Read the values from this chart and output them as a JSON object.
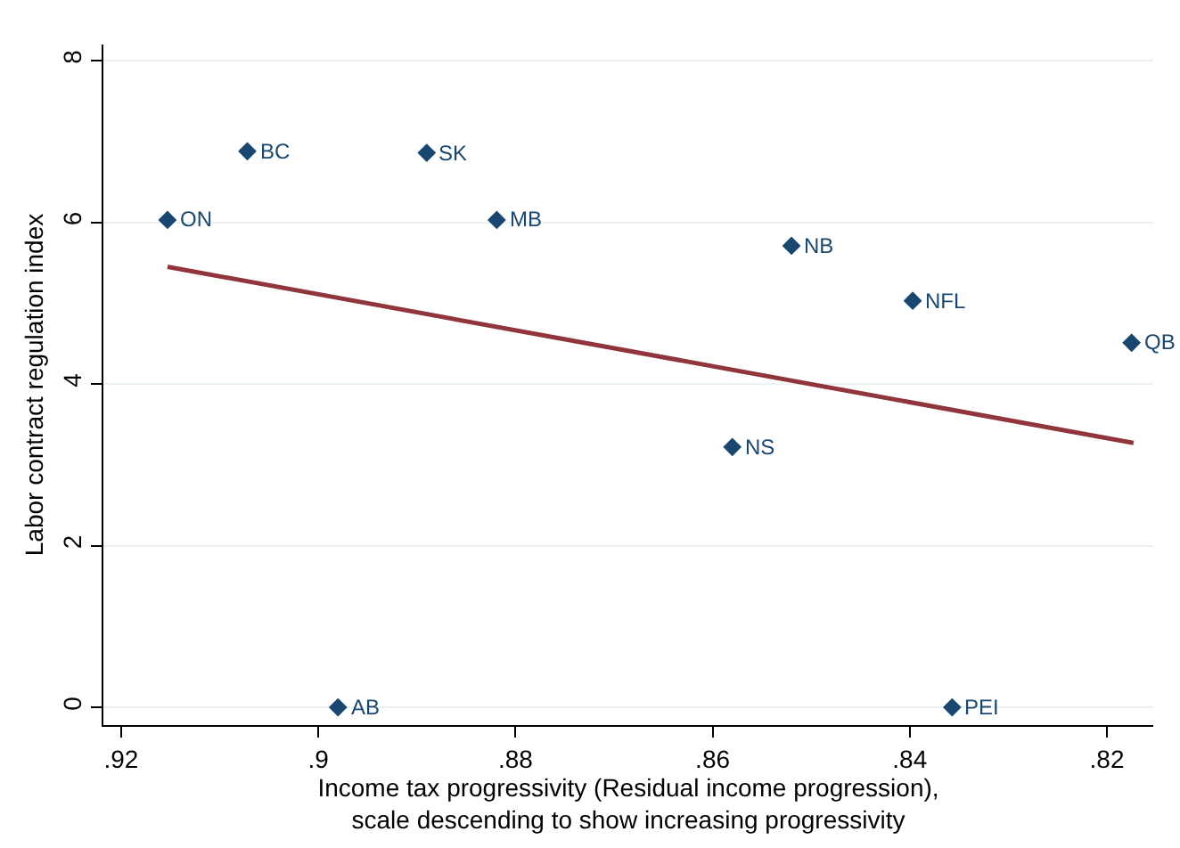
{
  "chart_data": {
    "type": "scatter",
    "xlabel": "Income tax progressivity (Residual income progression),\nscale descending to show increasing progressivity",
    "ylabel": "Labor contract regulation index",
    "xlim": [
      0.9218,
      0.8153
    ],
    "xticks": [
      {
        "value": 0.92,
        "label": ".92"
      },
      {
        "value": 0.9,
        "label": ".9"
      },
      {
        "value": 0.88,
        "label": ".88"
      },
      {
        "value": 0.86,
        "label": ".86"
      },
      {
        "value": 0.84,
        "label": ".84"
      },
      {
        "value": 0.82,
        "label": ".82"
      }
    ],
    "ylim": [
      -0.22,
      8.2
    ],
    "yticks": [
      0,
      2,
      4,
      6,
      8
    ],
    "grid": "y",
    "series": [
      {
        "marker": "diamond",
        "color": "#1a476f",
        "x": [
          0.9153,
          0.9072,
          0.889,
          0.8819,
          0.852,
          0.8397,
          0.8175,
          0.858,
          0.898,
          0.8357
        ],
        "values": [
          6.03,
          6.88,
          6.86,
          6.03,
          5.71,
          5.03,
          4.51,
          3.22,
          0,
          0
        ]
      },
      {
        "type": "line",
        "marker": "none",
        "color": "#90353b",
        "line_style": "solid",
        "x": [
          0.9153,
          0.8173
        ],
        "values": [
          5.45,
          3.27
        ]
      }
    ],
    "annotations": [
      {
        "text": "ON",
        "x": 0.9153,
        "y": 6.03
      },
      {
        "text": "BC",
        "x": 0.9072,
        "y": 6.88
      },
      {
        "text": "SK",
        "x": 0.889,
        "y": 6.86
      },
      {
        "text": "MB",
        "x": 0.8819,
        "y": 6.03
      },
      {
        "text": "NB",
        "x": 0.852,
        "y": 5.71
      },
      {
        "text": "NFL",
        "x": 0.8397,
        "y": 5.03
      },
      {
        "text": "QB",
        "x": 0.8175,
        "y": 4.51
      },
      {
        "text": "NS",
        "x": 0.858,
        "y": 3.22
      },
      {
        "text": "AB",
        "x": 0.898,
        "y": 0
      },
      {
        "text": "PEI",
        "x": 0.8357,
        "y": 0
      }
    ]
  }
}
